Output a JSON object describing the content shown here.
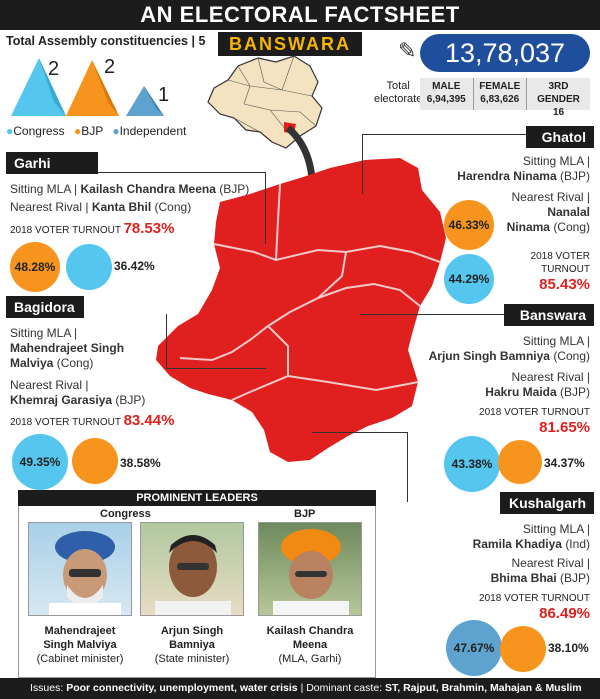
{
  "title": "AN ELECTORAL FACTSHEET",
  "total_constituencies_label": "Total Assembly constituencies",
  "total_constituencies_value": "5",
  "district": "BANSWARA",
  "seats": [
    {
      "party": "Congress",
      "count": "2",
      "color": "#55c7ef"
    },
    {
      "party": "BJP",
      "count": "2",
      "color": "#f7941d"
    },
    {
      "party": "Independent",
      "count": "1",
      "color": "#5ea3cf"
    }
  ],
  "legend": [
    {
      "label": "Congress",
      "color": "#55c7ef"
    },
    {
      "label": "BJP",
      "color": "#f7941d"
    },
    {
      "label": "Independent",
      "color": "#5ea3cf"
    }
  ],
  "electorate": {
    "total": "13,78,037",
    "total_label_1": "Total",
    "total_label_2": "electorate",
    "male_label": "MALE",
    "male": "6,94,395",
    "female_label": "FEMALE",
    "female": "6,83,626",
    "third_label": "3RD GENDER",
    "third": "16"
  },
  "labels": {
    "sitting": "Sitting MLA |",
    "rival": "Nearest Rival |",
    "turnout": "2018 VOTER TURNOUT",
    "turnout_a": "2018 VOTER",
    "turnout_b": "TURNOUT"
  },
  "garhi": {
    "name": "Garhi",
    "mla": "Kailash Chandra Meena",
    "mla_party": "(BJP)",
    "rival": "Kanta Bhil",
    "rival_party": "(Cong)",
    "turnout": "78.53%",
    "share_a": "48.28%",
    "share_b": "36.42%"
  },
  "ghatol": {
    "name": "Ghatol",
    "mla": "Harendra Ninama",
    "mla_party": "(BJP)",
    "rival_1": "Nanalal",
    "rival_2": "Ninama",
    "rival_party": "(Cong)",
    "turnout": "85.43%",
    "share_a": "46.33%",
    "share_b": "44.29%"
  },
  "bagidora": {
    "name": "Bagidora",
    "mla_1": "Mahendrajeet Singh",
    "mla_2": "Malviya",
    "mla_party": "(Cong)",
    "rival": "Khemraj Garasiya",
    "rival_party": "(BJP)",
    "turnout": "83.44%",
    "share_a": "49.35%",
    "share_b": "38.58%"
  },
  "banswara": {
    "name": "Banswara",
    "mla": "Arjun Singh Bamniya",
    "mla_party": "(Cong)",
    "rival": "Hakru Maida",
    "rival_party": "(BJP)",
    "turnout": "81.65%",
    "share_a": "43.38%",
    "share_b": "34.37%"
  },
  "kushalgarh": {
    "name": "Kushalgarh",
    "mla": "Ramila Khadiya",
    "mla_party": "(Ind)",
    "rival": "Bhima Bhai",
    "rival_party": "(BJP)",
    "turnout": "86.49%",
    "share_a": "47.67%",
    "share_b": "38.10%"
  },
  "leaders": {
    "header": "PROMINENT LEADERS",
    "congress_label": "Congress",
    "bjp_label": "BJP",
    "people": [
      {
        "name_1": "Mahendrajeet",
        "name_2": "Singh Malviya",
        "role": "(Cabinet minister)"
      },
      {
        "name_1": "Arjun Singh",
        "name_2": "Bamniya",
        "role": "(State minister)"
      },
      {
        "name_1": "Kailash Chandra",
        "name_2": "Meena",
        "role": "(MLA, Garhi)"
      }
    ]
  },
  "footer": {
    "issues_label": "Issues:",
    "issues": "Poor connectivity, unemployment, water crisis",
    "caste_label": "| Dominant caste:",
    "caste": "ST, Rajput, Brahmin, Mahajan & Muslim"
  }
}
